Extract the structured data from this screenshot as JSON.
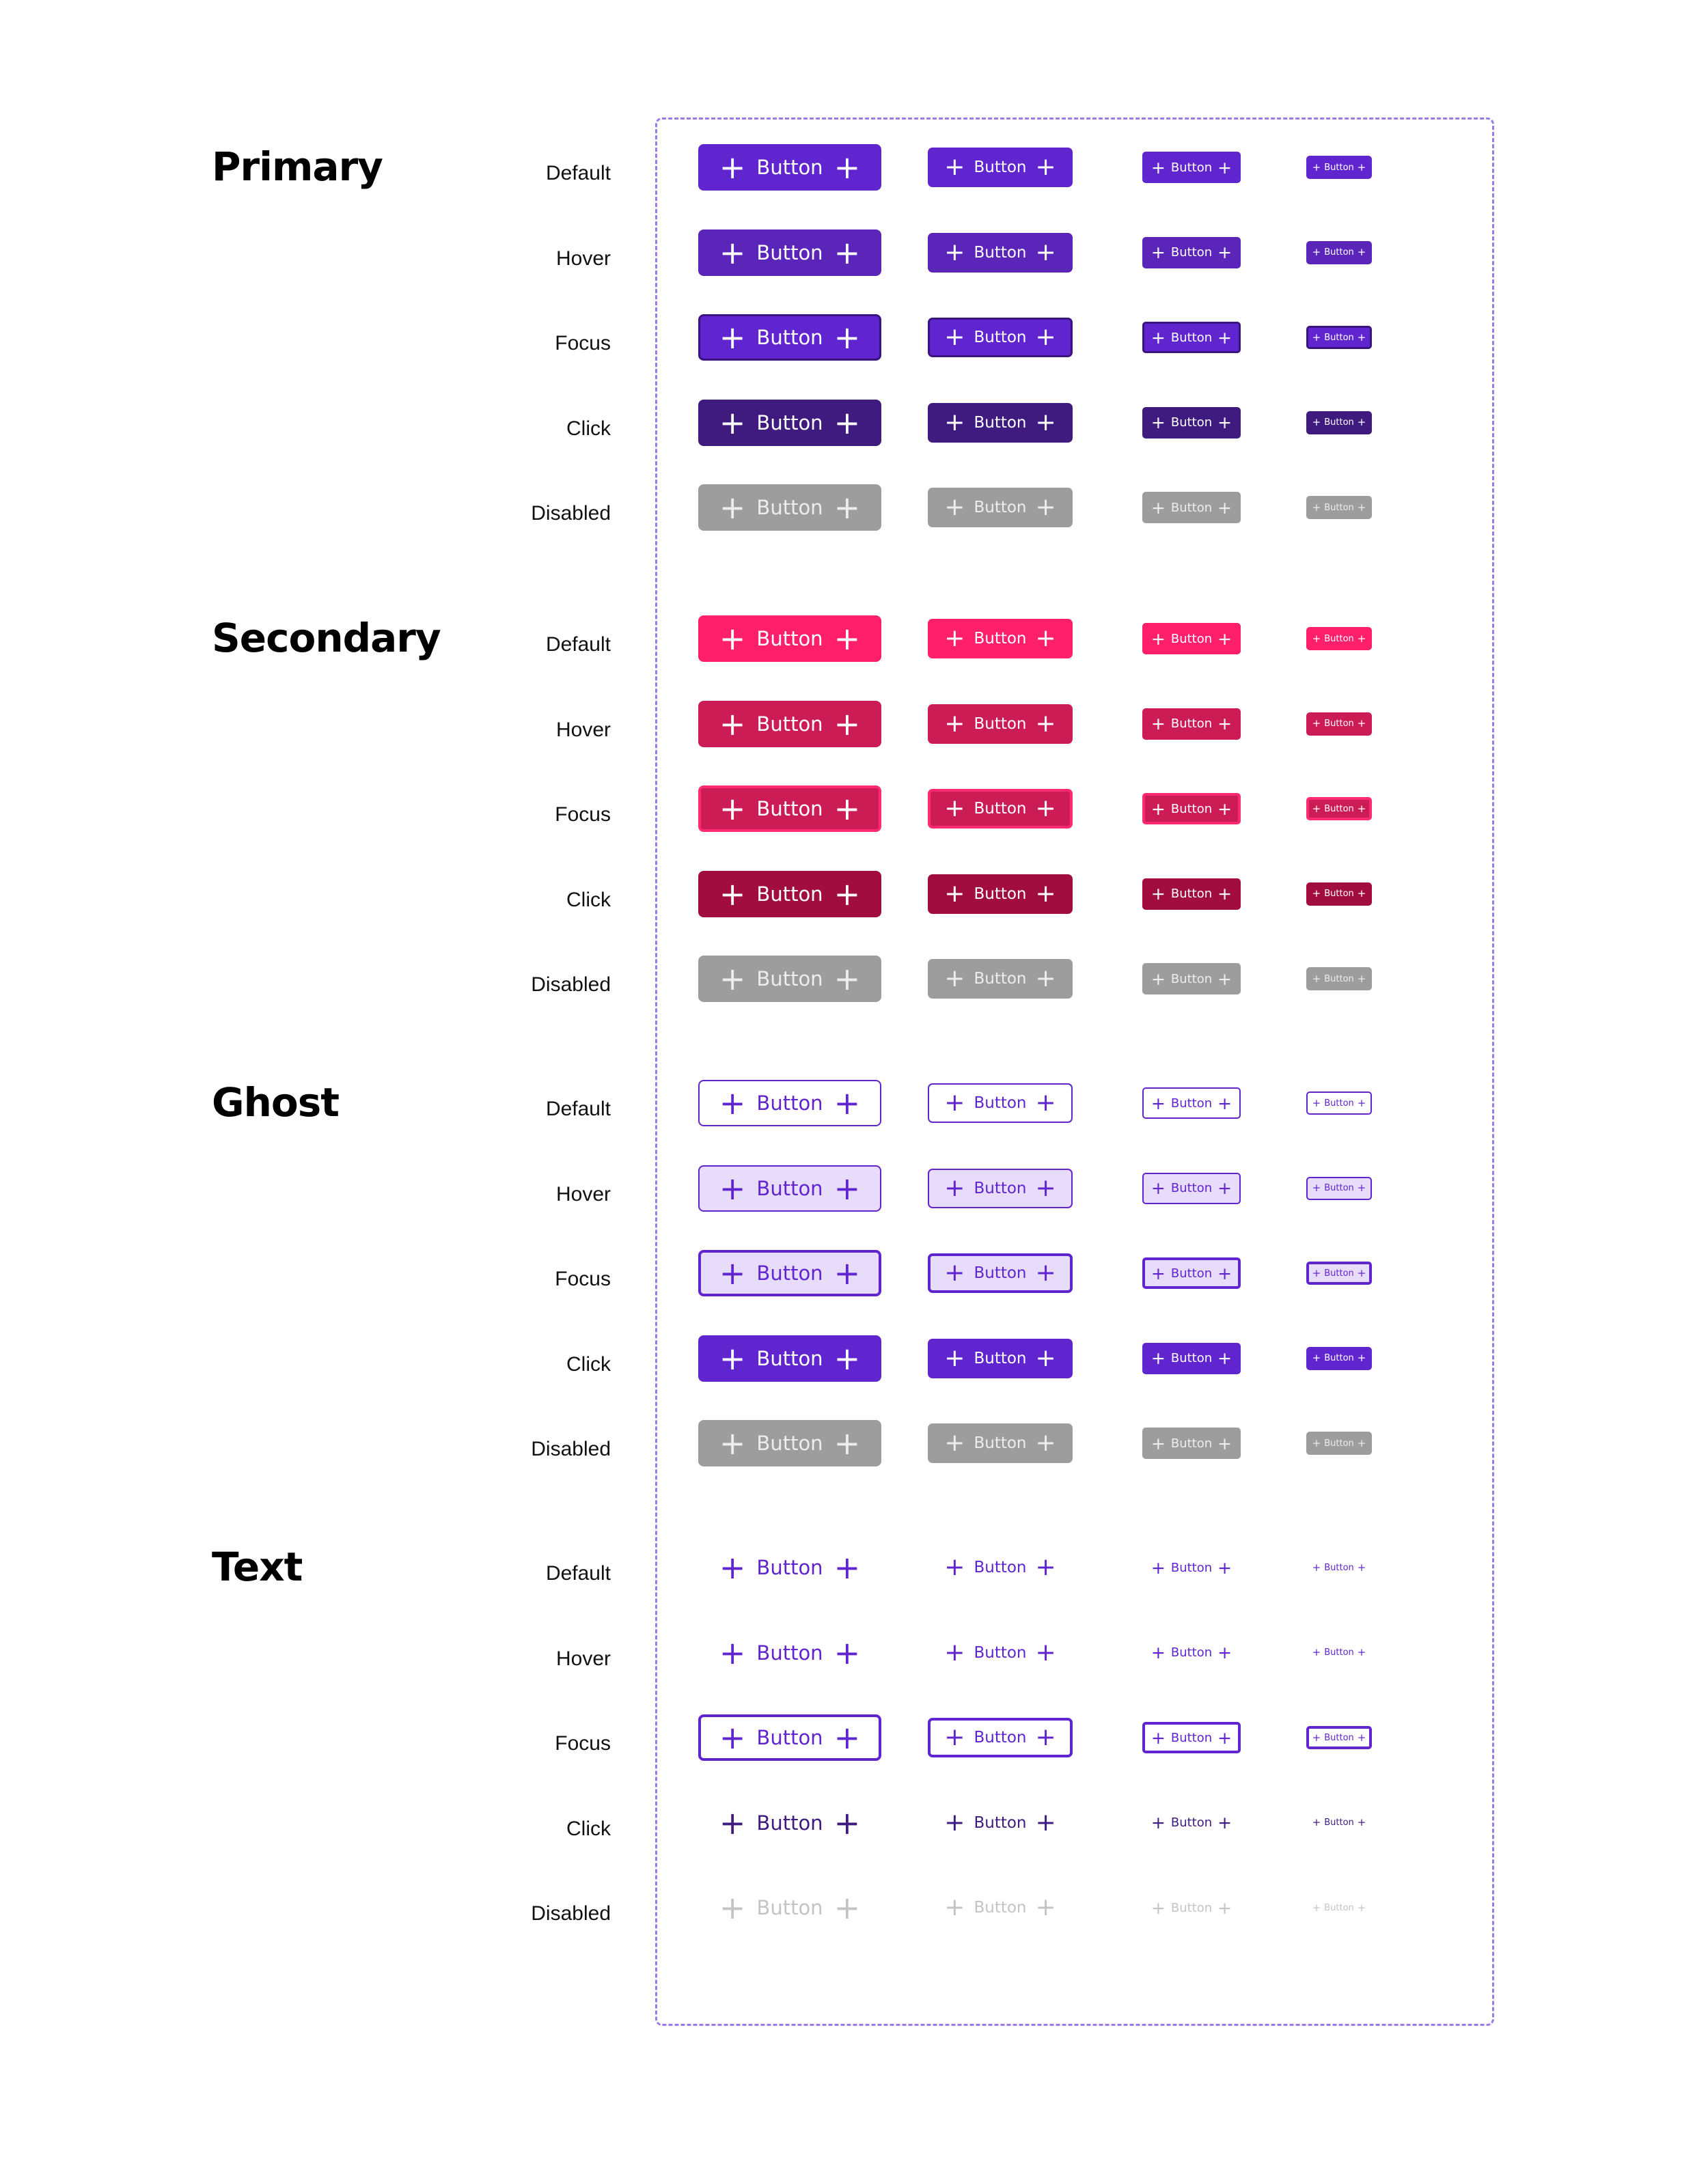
{
  "states": [
    "Default",
    "Hover",
    "Focus",
    "Click",
    "Disabled"
  ],
  "button_label": "Button",
  "button_sizes": [
    "large",
    "medium",
    "small",
    "x-small"
  ],
  "icons": {
    "leading": "plus-icon",
    "trailing": "plus-icon"
  },
  "colors": {
    "primary_default": "#6025cf",
    "primary_hover": "#5a25b8",
    "primary_focus_border": "#3a157f",
    "primary_click": "#3f1b80",
    "disabled_fill": "#9d9d9d",
    "disabled_text": "#ededed",
    "secondary_default": "#ff1f6b",
    "secondary_hover": "#cc1c56",
    "secondary_focus_border": "#ff2a70",
    "secondary_click": "#a10d3f",
    "ghost_border": "#6025cf",
    "ghost_hover_fill": "#e8dcfb",
    "ghost_text": "#6025cf",
    "text_click": "#3f1b80",
    "text_disabled": "#c4c4c4",
    "frame_border": "#9b7be8"
  },
  "variants": [
    {
      "title": "Primary"
    },
    {
      "title": "Secondary"
    },
    {
      "title": "Ghost"
    },
    {
      "title": "Text"
    }
  ]
}
